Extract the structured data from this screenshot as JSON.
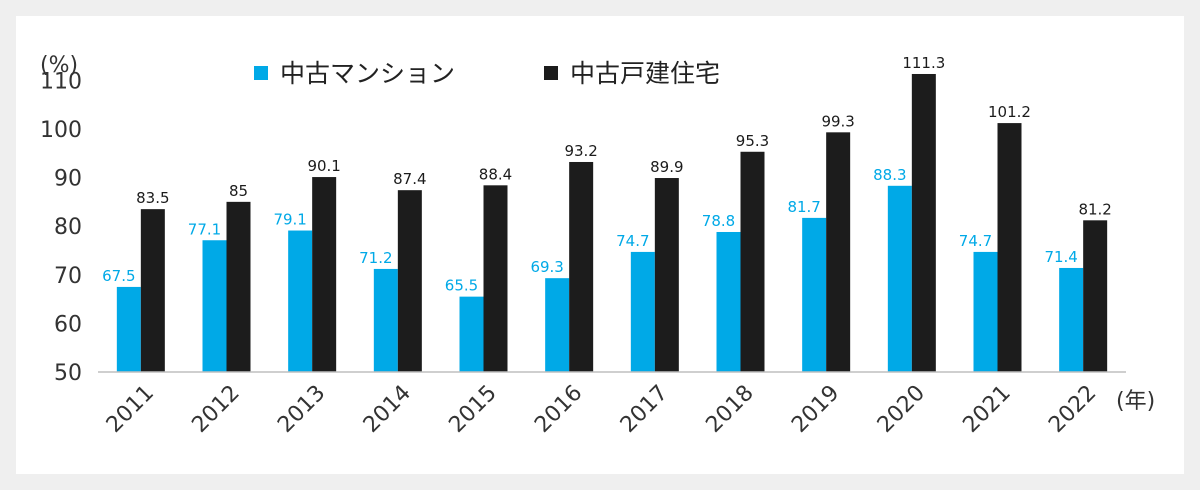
{
  "chart_data": {
    "type": "bar",
    "y_unit": "(%)",
    "x_unit": "(年)",
    "categories": [
      "2011",
      "2012",
      "2013",
      "2014",
      "2015",
      "2016",
      "2017",
      "2018",
      "2019",
      "2020",
      "2021",
      "2022"
    ],
    "series": [
      {
        "name": "中古マンション",
        "color": "#00a9e7",
        "label_color": "#00a9e7",
        "values": [
          67.5,
          77.1,
          79.1,
          71.2,
          65.5,
          69.3,
          74.7,
          78.8,
          81.7,
          88.3,
          74.7,
          71.4
        ]
      },
      {
        "name": "中古戸建住宅",
        "color": "#1c1c1c",
        "label_color": "#1c1c1c",
        "values": [
          83.5,
          85,
          90.1,
          87.4,
          88.4,
          93.2,
          89.9,
          95.3,
          99.3,
          111.3,
          101.2,
          81.2
        ]
      }
    ],
    "ylim": [
      50,
      115
    ],
    "yticks": [
      50,
      60,
      70,
      80,
      90,
      100,
      110
    ],
    "grid": false,
    "legend": "top-left"
  }
}
